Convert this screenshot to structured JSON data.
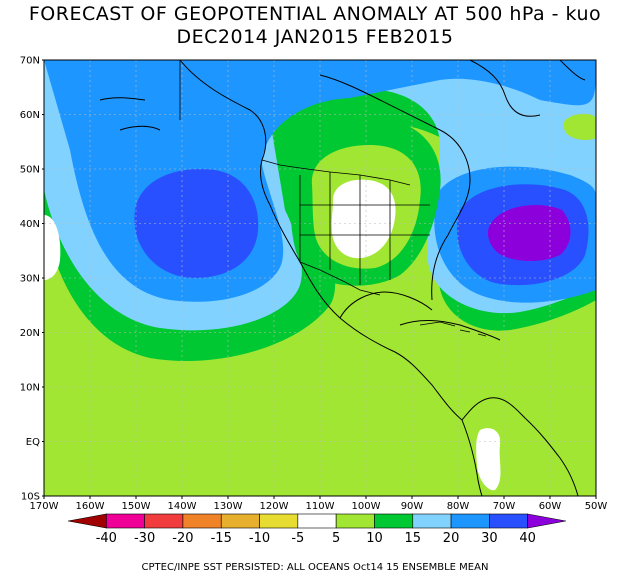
{
  "title_line1": "FORECAST OF GEOPOTENTIAL ANOMALY AT 500 hPa - kuo",
  "title_line2": "DEC2014 JAN2015 FEB2015",
  "lat_labels": [
    "70N",
    "60N",
    "50N",
    "40N",
    "30N",
    "20N",
    "10N",
    "EQ",
    "10S"
  ],
  "lon_labels": [
    "170W",
    "160W",
    "150W",
    "140W",
    "130W",
    "120W",
    "110W",
    "100W",
    "90W",
    "80W",
    "70W",
    "60W",
    "50W"
  ],
  "colorbar": {
    "labels": [
      "-40",
      "-30",
      "-20",
      "-15",
      "-10",
      "-5",
      "5",
      "10",
      "15",
      "20",
      "30",
      "40"
    ],
    "colors": [
      "#a00000",
      "#f00096",
      "#f03c3c",
      "#f08228",
      "#e6af2d",
      "#e6dc32",
      "#ffffff",
      "#a0e632",
      "#00c832",
      "#82d2ff",
      "#1e96ff",
      "#2850ff",
      "#8c00dc"
    ]
  },
  "anomaly_colors": {
    "m_lt_10": "#a0e632",
    "p10_15": "#50d250",
    "p15_20": "#00c832",
    "p20_30": "#82d2ff",
    "p30_40": "#1e96ff",
    "p_gt_40": "#2850ff",
    "p_gt_50": "#8c00dc"
  },
  "footer": "CPTEC/INPE SST PERSISTED: ALL OCEANS Oct14 15 ENSEMBLE MEAN"
}
